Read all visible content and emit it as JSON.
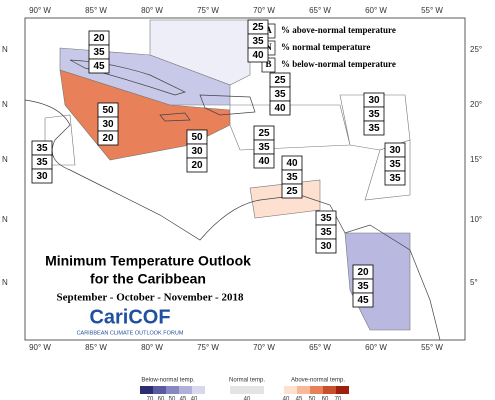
{
  "map": {
    "title": "Minimum Temperature Outlook",
    "subtitle": "for the Caribbean",
    "period": "September - October - November - 2018",
    "logo": {
      "name": "CariCOF",
      "tagline": "CARIBBEAN CLIMATE OUTLOOK FORUM"
    },
    "key": [
      {
        "letter": "A",
        "text": "% above-normal temperature"
      },
      {
        "letter": "N",
        "text": "% normal temperature"
      },
      {
        "letter": "B",
        "text": "% below-normal temperature"
      }
    ],
    "lon_labels": [
      "90° W",
      "85° W",
      "80° W",
      "75° W",
      "70° W",
      "65° W",
      "60° W",
      "55° W"
    ],
    "lat_labels_left": [
      "N",
      "N",
      "N",
      "N",
      "N"
    ],
    "lat_labels_right": [
      "25°",
      "20°",
      "15°",
      "10°",
      "5°"
    ],
    "regions": [
      {
        "values": [
          25,
          35,
          40
        ]
      },
      {
        "values": [
          20,
          35,
          45
        ]
      },
      {
        "values": [
          50,
          30,
          20
        ]
      },
      {
        "values": [
          50,
          30,
          20
        ]
      },
      {
        "values": [
          25,
          35,
          40
        ]
      },
      {
        "values": [
          25,
          35,
          40
        ]
      },
      {
        "values": [
          30,
          35,
          35
        ]
      },
      {
        "values": [
          30,
          35,
          35
        ]
      },
      {
        "values": [
          35,
          35,
          30
        ]
      },
      {
        "values": [
          40,
          35,
          25
        ]
      },
      {
        "values": [
          35,
          35,
          30
        ]
      },
      {
        "values": [
          20,
          35,
          45
        ]
      }
    ],
    "colorbar": {
      "below_label": "Below-normal temp.",
      "below_ticks": [
        70,
        60,
        50,
        45,
        40
      ],
      "normal_label": "Normal temp.",
      "normal_ticks": [
        40
      ],
      "above_label": "Above-normal temp.",
      "above_ticks": [
        40,
        45,
        50,
        60,
        70
      ]
    }
  }
}
